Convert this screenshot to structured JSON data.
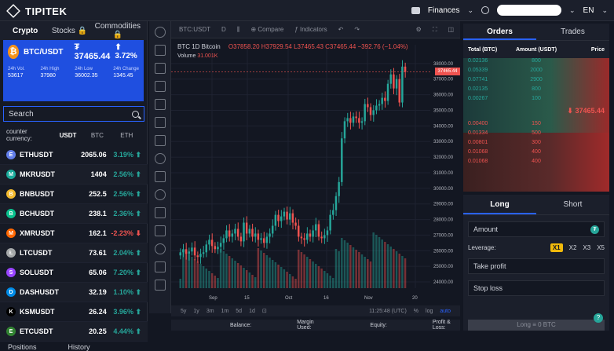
{
  "brand": "TIPITEK",
  "topbar": {
    "finances": "Finances",
    "lang": "EN"
  },
  "categories": [
    {
      "label": "Crypto",
      "active": true
    },
    {
      "label": "Stocks 🔒",
      "active": false
    },
    {
      "label": "Commodities 🔒",
      "active": false
    }
  ],
  "ticker": {
    "pair": "BTC/USDT",
    "price": "₮ 37465.44",
    "change": "⬆ 3.72%",
    "stats": [
      {
        "label": "24h Vol.",
        "value": "53617"
      },
      {
        "label": "24h High",
        "value": "37980"
      },
      {
        "label": "24h Low",
        "value": "36002.35"
      },
      {
        "label": "24h Change",
        "value": "1345.45"
      }
    ]
  },
  "search": {
    "placeholder": "Search"
  },
  "counter": {
    "label": "counter currency:",
    "options": [
      "USDT",
      "BTC",
      "ETH"
    ]
  },
  "markets": [
    {
      "pair": "ETHUSDT",
      "price": "2065.06",
      "change": "3.19% ⬆",
      "dir": "up",
      "color": "#627eea",
      "glyph": "E"
    },
    {
      "pair": "MKRUSDT",
      "price": "1404",
      "change": "2.56% ⬆",
      "dir": "up",
      "color": "#1aab9b",
      "glyph": "M"
    },
    {
      "pair": "BNBUSDT",
      "price": "252.5",
      "change": "2.56% ⬆",
      "dir": "up",
      "color": "#f3ba2f",
      "glyph": "B"
    },
    {
      "pair": "BCHUSDT",
      "price": "238.1",
      "change": "2.36% ⬆",
      "dir": "up",
      "color": "#0ac18e",
      "glyph": "B"
    },
    {
      "pair": "XMRUSDT",
      "price": "162.1",
      "change": "-2.23% ⬇",
      "dir": "down",
      "color": "#ff6600",
      "glyph": "M"
    },
    {
      "pair": "LTCUSDT",
      "price": "73.61",
      "change": "2.04% ⬆",
      "dir": "up",
      "color": "#a6a9aa",
      "glyph": "Ł"
    },
    {
      "pair": "SOLUSDT",
      "price": "65.06",
      "change": "7.20% ⬆",
      "dir": "up",
      "color": "#9945ff",
      "glyph": "S"
    },
    {
      "pair": "DASHUSDT",
      "price": "32.19",
      "change": "1.10% ⬆",
      "dir": "up",
      "color": "#008ce7",
      "glyph": "D"
    },
    {
      "pair": "KSMUSDT",
      "price": "26.24",
      "change": "3.96% ⬆",
      "dir": "up",
      "color": "#000000",
      "glyph": "K"
    },
    {
      "pair": "ETCUSDT",
      "price": "20.25",
      "change": "4.44% ⬆",
      "dir": "up",
      "color": "#328332",
      "glyph": "E"
    }
  ],
  "positions_label": "Positions",
  "history_label": "History",
  "chart_toolbar": {
    "symbol": "BTC:USDT",
    "interval": "D",
    "compare": "Compare",
    "indicators": "Indicators"
  },
  "chart_legend": {
    "title": "BTC  1D  Bitcoin",
    "ohlc": "O37858.20 H37929.54 L37465.43 C37465.44 −392.76 (−1.04%)",
    "volume_label": "Volume",
    "volume_value": "31.001K"
  },
  "chart_data": {
    "type": "candlestick",
    "title": "BTC 1D Bitcoin",
    "y_ticks": [
      38000,
      37000,
      36000,
      35000,
      34000,
      33000,
      32000,
      31000,
      30000,
      29000,
      28000,
      27000,
      26000,
      25000,
      24000
    ],
    "x_ticks": [
      "Sep",
      "15",
      "Oct",
      "16",
      "Nov",
      "20"
    ],
    "ylim": [
      23600,
      39200
    ],
    "last_price": "37465.44",
    "closes": [
      25900,
      26100,
      25800,
      25950,
      26200,
      25700,
      25600,
      25800,
      25900,
      26400,
      26700,
      26300,
      26100,
      26250,
      26500,
      26800,
      27300,
      26900,
      27100,
      27400,
      26900,
      26600,
      27800,
      27100,
      27400,
      26900,
      27100,
      26700,
      26800,
      26500,
      26900,
      27100,
      27600,
      28300,
      27900,
      28200,
      28500,
      28000,
      28400,
      27800,
      27600,
      26900,
      26800,
      26700,
      27100,
      26900,
      27300,
      27700,
      26900,
      26800,
      27000,
      27300,
      28300,
      28600,
      29500,
      30400,
      33200,
      34300,
      34500,
      34200,
      34600,
      34500,
      34200,
      34300,
      35400,
      35200,
      34700,
      35000,
      35300,
      35400,
      35800,
      35600,
      36700,
      37300,
      36400,
      37000,
      35500,
      37800,
      37465
    ]
  },
  "chart_bottom": {
    "ranges": [
      "5y",
      "1y",
      "3m",
      "1m",
      "5d",
      "1d"
    ],
    "time": "11:25:48 (UTC)",
    "pct": "%",
    "log": "log",
    "auto": "auto"
  },
  "orders": {
    "tabs": [
      "Orders",
      "Trades"
    ],
    "headers": [
      "Total (BTC)",
      "Amount (USDT)",
      "Price"
    ],
    "bids": [
      {
        "total": "0.02136",
        "amount": "800"
      },
      {
        "total": "0.05339",
        "amount": "2000"
      },
      {
        "total": "0.07741",
        "amount": "2900"
      },
      {
        "total": "0.02135",
        "amount": "800"
      },
      {
        "total": "0.00267",
        "amount": "100"
      }
    ],
    "mid": "⬇ 37465.44",
    "asks": [
      {
        "total": "0.00400",
        "amount": "150"
      },
      {
        "total": "0.01334",
        "amount": "500"
      },
      {
        "total": "0.00801",
        "amount": "300"
      },
      {
        "total": "0.01068",
        "amount": "400"
      },
      {
        "total": "0.01068",
        "amount": "400"
      }
    ]
  },
  "trade": {
    "tabs": [
      "Long",
      "Short"
    ],
    "amount": "Amount",
    "leverage_label": "Leverage:",
    "leverages": [
      "X1",
      "X2",
      "X3",
      "X5"
    ],
    "take_profit": "Take profit",
    "stop_loss": "Stop loss",
    "submit": "Long ≡ 0  BTC"
  },
  "footer": {
    "balance": "Balance:",
    "margin": "Margin Used:",
    "equity": "Equity:",
    "pnl": "Profit & Loss:"
  }
}
